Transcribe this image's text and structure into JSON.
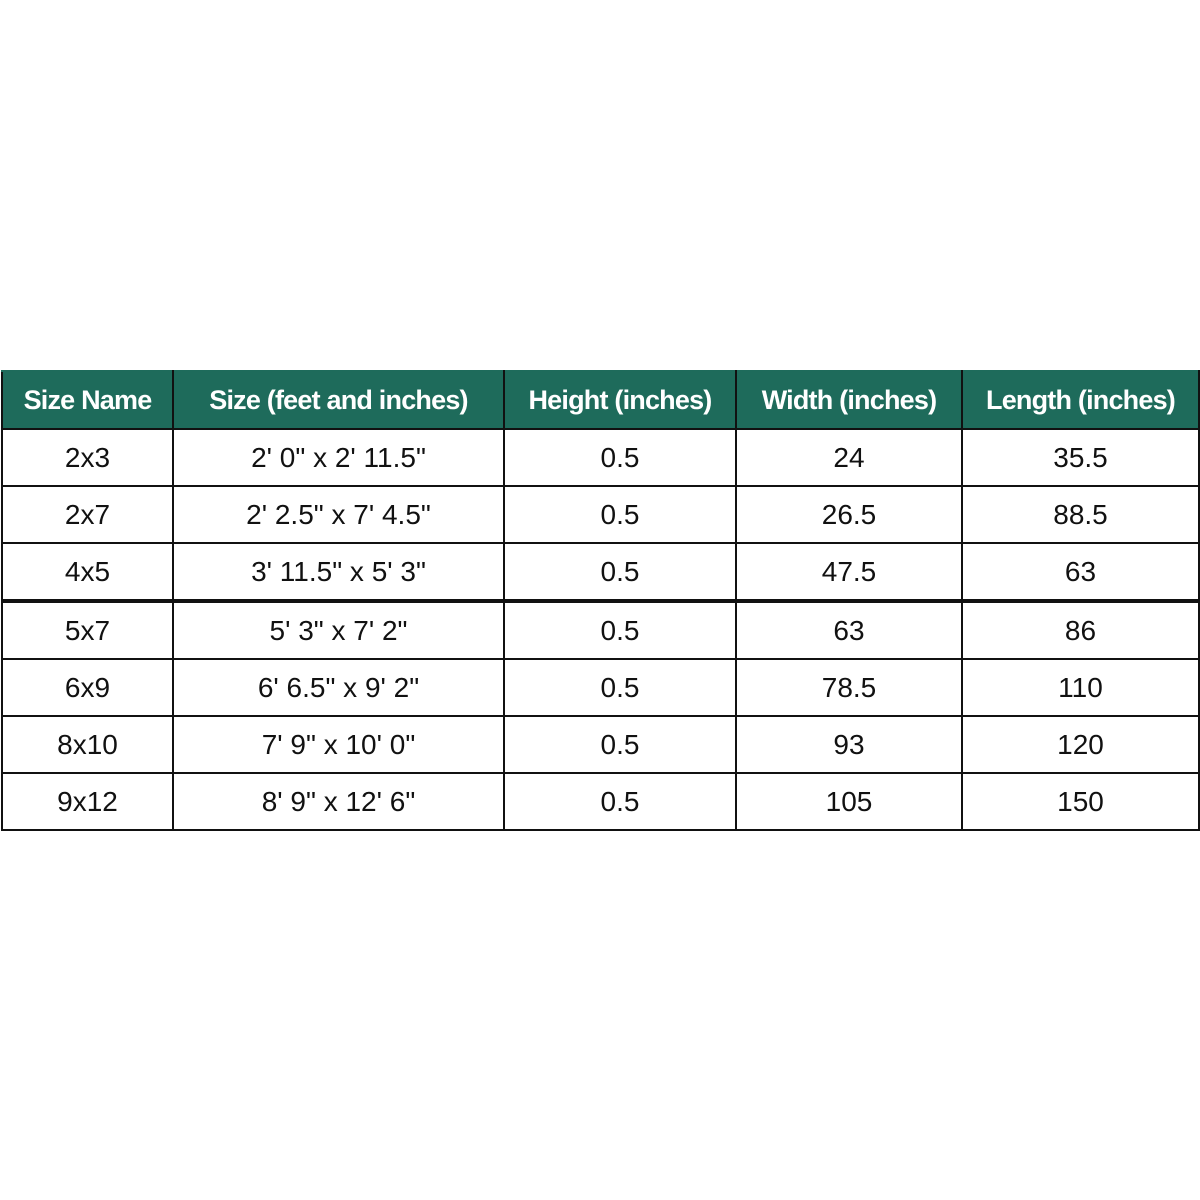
{
  "table": {
    "header": [
      "Size Name",
      "Size (feet and inches)",
      "Height (inches)",
      "Width (inches)",
      "Length (inches)"
    ],
    "rows": [
      [
        "2x3",
        "2' 0\" x 2' 11.5\"",
        "0.5",
        "24",
        "35.5"
      ],
      [
        "2x7",
        "2' 2.5\" x 7' 4.5\"",
        "0.5",
        "26.5",
        "88.5"
      ],
      [
        "4x5",
        "3' 11.5\" x 5' 3\"",
        "0.5",
        "47.5",
        "63"
      ],
      [
        "5x7",
        "5' 3\" x 7' 2\"",
        "0.5",
        "63",
        "86"
      ],
      [
        "6x9",
        "6' 6.5\" x 9' 2\"",
        "0.5",
        "78.5",
        "110"
      ],
      [
        "8x10",
        "7' 9\" x 10' 0\"",
        "0.5",
        "93",
        "120"
      ],
      [
        "9x12",
        "8' 9\" x 12' 6\"",
        "0.5",
        "105",
        "150"
      ]
    ]
  }
}
